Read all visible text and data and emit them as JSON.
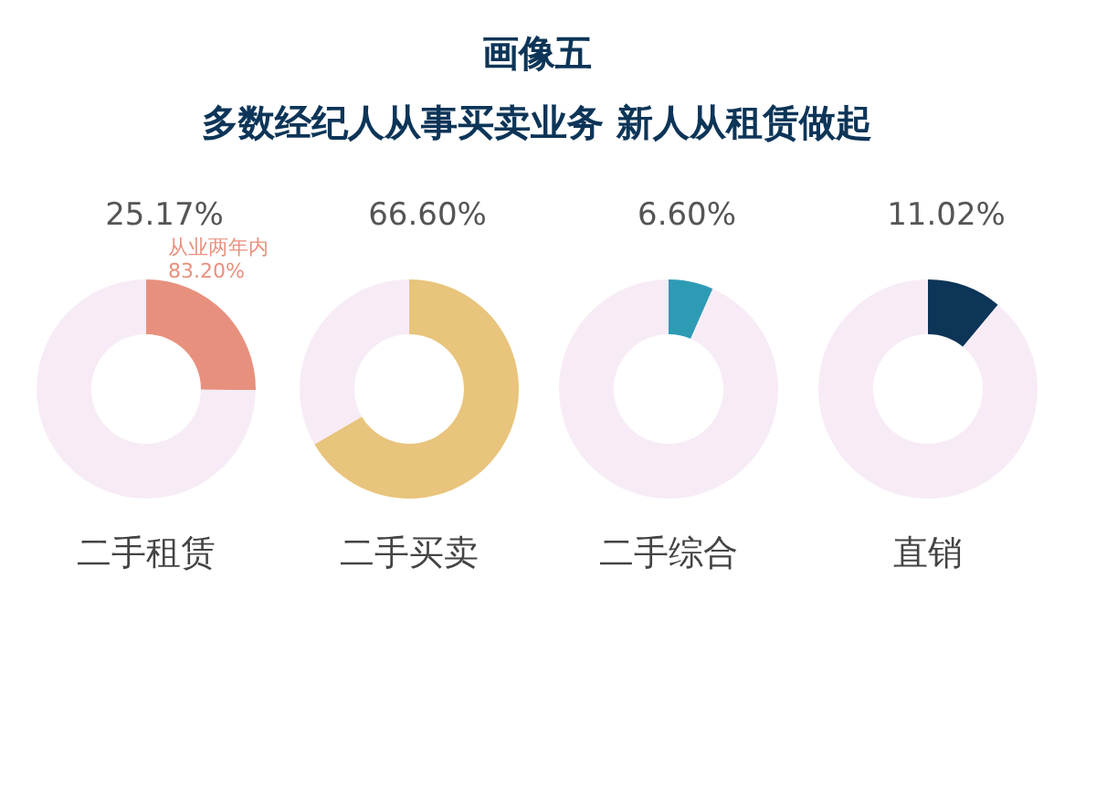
{
  "chart_data": [
    {
      "type": "donut",
      "title": "画像五",
      "subtitle": "多数经纪人从事买卖业务 新人从租赁做起",
      "xlabel": "二手租赁",
      "categories": [
        null,
        null
      ],
      "values": [
        25.17,
        74.83
      ],
      "colors": [
        "#e8907e",
        "#f7ecf6"
      ],
      "value_labels": [
        "25.17%",
        null
      ],
      "annotations": [
        "从业两年内\n83.20%"
      ]
    },
    {
      "type": "donut",
      "xlabel": "二手买卖",
      "categories": [
        null,
        null
      ],
      "values": [
        66.6,
        33.4
      ],
      "colors": [
        "#e8c47c",
        "#f7ecf6"
      ],
      "value_labels": [
        "66.60%",
        null
      ]
    },
    {
      "type": "donut",
      "xlabel": "二手综合",
      "categories": [
        null,
        null
      ],
      "values": [
        6.6,
        93.4
      ],
      "colors": [
        "#2e9bb5",
        "#f7ecf6"
      ],
      "value_labels": [
        "6.60%",
        null
      ]
    },
    {
      "type": "donut",
      "xlabel": "直销",
      "categories": [
        null,
        null
      ],
      "values": [
        11.02,
        88.98
      ],
      "colors": [
        "#0d3558",
        "#f7ecf6"
      ],
      "value_labels": [
        "11.02%",
        null
      ]
    }
  ]
}
